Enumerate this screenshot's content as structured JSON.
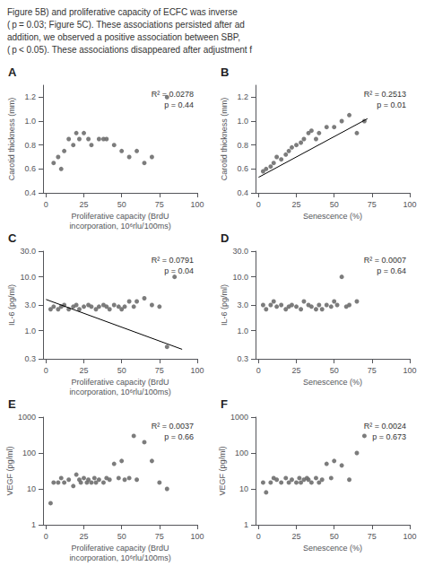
{
  "annotations": [
    "Figure 5B) and proliferative capacity of ECFC was inverse",
    "( p = 0.03; Figure 5C). These associations persisted after ad",
    "addition, we observed a positive association between SBP,",
    "( p < 0.05). These associations disappeared after adjustment f"
  ],
  "chart_data": [
    {
      "type": "scatter",
      "title": "A",
      "annotations": [
        "R² = 0.0278",
        "p = 0.44"
      ],
      "xlabel": "Proliferative capacity (BrdU\nincorporation, 10⁶rlu/100ms)",
      "ylabel": "Carotid thickness (mm)",
      "xlim": [
        -2,
        100
      ],
      "ylim": [
        0.4,
        1.3
      ],
      "xticks": [
        0,
        25,
        50,
        75,
        100
      ],
      "yticks": [
        0.4,
        0.6,
        0.8,
        {
          "value": 1,
          "label": "1.0"
        },
        1.2
      ],
      "grid": false,
      "series": [
        {
          "type": "scatter",
          "color": "#6e6e6e",
          "x": [
            5,
            8,
            10,
            12,
            15,
            18,
            20,
            22,
            25,
            28,
            30,
            35,
            38,
            40,
            45,
            50,
            55,
            60,
            65,
            70,
            80
          ],
          "values": [
            0.65,
            0.7,
            0.6,
            0.75,
            0.85,
            0.8,
            0.9,
            0.85,
            0.9,
            0.85,
            0.8,
            0.85,
            0.85,
            0.85,
            0.8,
            0.75,
            0.7,
            0.75,
            0.65,
            0.7,
            1.2
          ]
        }
      ]
    },
    {
      "type": "scatter",
      "title": "B",
      "annotations": [
        "R² = 0.2513",
        "p = 0.01"
      ],
      "xlabel": "Senescence (%)",
      "ylabel": "Carotid thickness (mm)",
      "xlim": [
        -2,
        100
      ],
      "ylim": [
        0.4,
        1.3
      ],
      "xticks": [
        0,
        25,
        50,
        75,
        100
      ],
      "yticks": [
        0.4,
        0.6,
        0.8,
        {
          "value": 1,
          "label": "1.0"
        },
        1.2
      ],
      "grid": false,
      "series": [
        {
          "type": "scatter",
          "color": "#6e6e6e",
          "x": [
            3,
            5,
            8,
            10,
            12,
            15,
            18,
            20,
            22,
            25,
            28,
            30,
            33,
            35,
            38,
            40,
            45,
            50,
            55,
            60,
            65,
            70
          ],
          "values": [
            0.58,
            0.6,
            0.62,
            0.65,
            0.7,
            0.68,
            0.72,
            0.75,
            0.78,
            0.8,
            0.82,
            0.85,
            0.9,
            0.92,
            0.85,
            0.9,
            0.95,
            0.95,
            1.0,
            1.05,
            0.9,
            1.0
          ]
        },
        {
          "type": "line",
          "color": "#000000",
          "x": [
            0,
            72
          ],
          "values": [
            0.53,
            1.02
          ]
        }
      ]
    },
    {
      "type": "scatter",
      "title": "C",
      "annotations": [
        "R² = 0.0791",
        "p = 0.04"
      ],
      "xlabel": "Proliferative capacity (BrdU\nincorporation, 10⁶rlu/100ms)",
      "ylabel": "IL-6 (pg/ml)",
      "log": "y",
      "xlim": [
        -2,
        100
      ],
      "ylim": [
        0.3,
        30
      ],
      "xticks": [
        0,
        25,
        50,
        75,
        100
      ],
      "yticks": [
        0.3,
        {
          "value": 1,
          "label": "1.0"
        },
        {
          "value": 3,
          "label": "3.0"
        },
        {
          "value": 10,
          "label": "10.0"
        },
        {
          "value": 30,
          "label": "30.0"
        }
      ],
      "grid": false,
      "series": [
        {
          "type": "scatter",
          "color": "#6e6e6e",
          "x": [
            3,
            5,
            8,
            10,
            12,
            15,
            18,
            20,
            22,
            25,
            28,
            30,
            33,
            35,
            38,
            40,
            42,
            45,
            48,
            50,
            52,
            55,
            58,
            60,
            65,
            70,
            75,
            80,
            85
          ],
          "values": [
            2.5,
            2.8,
            2.5,
            2.8,
            3.0,
            2.5,
            2.8,
            3.0,
            2.5,
            2.8,
            3.0,
            2.8,
            2.5,
            2.8,
            3.0,
            2.8,
            2.5,
            3.0,
            2.8,
            2.5,
            2.8,
            3.5,
            2.8,
            3.5,
            4.0,
            3.0,
            2.8,
            0.5,
            10.0
          ]
        },
        {
          "type": "line",
          "color": "#000000",
          "x": [
            0,
            90
          ],
          "values": [
            3.8,
            0.45
          ]
        }
      ]
    },
    {
      "type": "scatter",
      "title": "D",
      "annotations": [
        "R² = 0.0007",
        "p = 0.64"
      ],
      "xlabel": "Senescence (%)",
      "ylabel": "IL-6 (pg/ml)",
      "log": "y",
      "xlim": [
        -2,
        100
      ],
      "ylim": [
        0.3,
        30
      ],
      "xticks": [
        0,
        25,
        50,
        75,
        100
      ],
      "yticks": [
        0.3,
        {
          "value": 1,
          "label": "1.0"
        },
        {
          "value": 3,
          "label": "3.0"
        },
        {
          "value": 10,
          "label": "10.0"
        },
        {
          "value": 30,
          "label": "30.0"
        }
      ],
      "grid": false,
      "series": [
        {
          "type": "scatter",
          "color": "#6e6e6e",
          "x": [
            3,
            5,
            8,
            10,
            12,
            15,
            18,
            20,
            22,
            25,
            28,
            30,
            33,
            35,
            38,
            40,
            42,
            45,
            48,
            50,
            52,
            55,
            58,
            60,
            65
          ],
          "values": [
            3.0,
            2.5,
            3.0,
            3.5,
            2.8,
            3.0,
            2.5,
            2.8,
            3.0,
            2.8,
            2.5,
            3.5,
            3.0,
            2.8,
            2.5,
            3.0,
            2.5,
            3.0,
            2.8,
            3.5,
            3.0,
            10.0,
            2.8,
            3.0,
            3.5
          ]
        }
      ]
    },
    {
      "type": "scatter",
      "title": "E",
      "annotations": [
        "R² = 0.0037",
        "p = 0.66"
      ],
      "xlabel": "Proliferative capacity (BrdU\nincorporation, 10⁶rlu/100ms)",
      "ylabel": "VEGF (pg/ml)",
      "log": "y",
      "xlim": [
        -2,
        100
      ],
      "ylim": [
        1,
        1000
      ],
      "xticks": [
        0,
        25,
        50,
        75,
        100
      ],
      "yticks": [
        1,
        10,
        100,
        1000
      ],
      "grid": false,
      "series": [
        {
          "type": "scatter",
          "color": "#6e6e6e",
          "x": [
            3,
            5,
            8,
            10,
            12,
            15,
            18,
            20,
            22,
            23,
            25,
            27,
            28,
            30,
            32,
            33,
            35,
            38,
            40,
            42,
            45,
            48,
            50,
            52,
            55,
            58,
            60,
            65,
            70,
            75,
            80
          ],
          "values": [
            4,
            15,
            15,
            20,
            15,
            18,
            12,
            25,
            18,
            15,
            20,
            15,
            18,
            15,
            20,
            15,
            18,
            15,
            20,
            18,
            50,
            20,
            60,
            18,
            20,
            300,
            18,
            200,
            60,
            15,
            10
          ]
        }
      ]
    },
    {
      "type": "scatter",
      "title": "F",
      "annotations": [
        "R² = 0.0024",
        "p = 0.673"
      ],
      "xlabel": "Senescence (%)",
      "ylabel": "VEGF (pg/ml)",
      "log": "y",
      "xlim": [
        -2,
        100
      ],
      "ylim": [
        1,
        1000
      ],
      "xticks": [
        0,
        25,
        50,
        75,
        100
      ],
      "yticks": [
        1,
        10,
        100,
        1000
      ],
      "grid": false,
      "series": [
        {
          "type": "scatter",
          "color": "#6e6e6e",
          "x": [
            3,
            5,
            8,
            10,
            12,
            15,
            18,
            20,
            22,
            25,
            27,
            28,
            30,
            32,
            33,
            35,
            38,
            40,
            42,
            45,
            48,
            50,
            55,
            60,
            65,
            70
          ],
          "values": [
            15,
            8,
            15,
            20,
            18,
            15,
            20,
            15,
            18,
            15,
            20,
            15,
            18,
            20,
            18,
            15,
            20,
            15,
            18,
            50,
            20,
            60,
            45,
            18,
            100,
            300
          ]
        }
      ]
    }
  ]
}
